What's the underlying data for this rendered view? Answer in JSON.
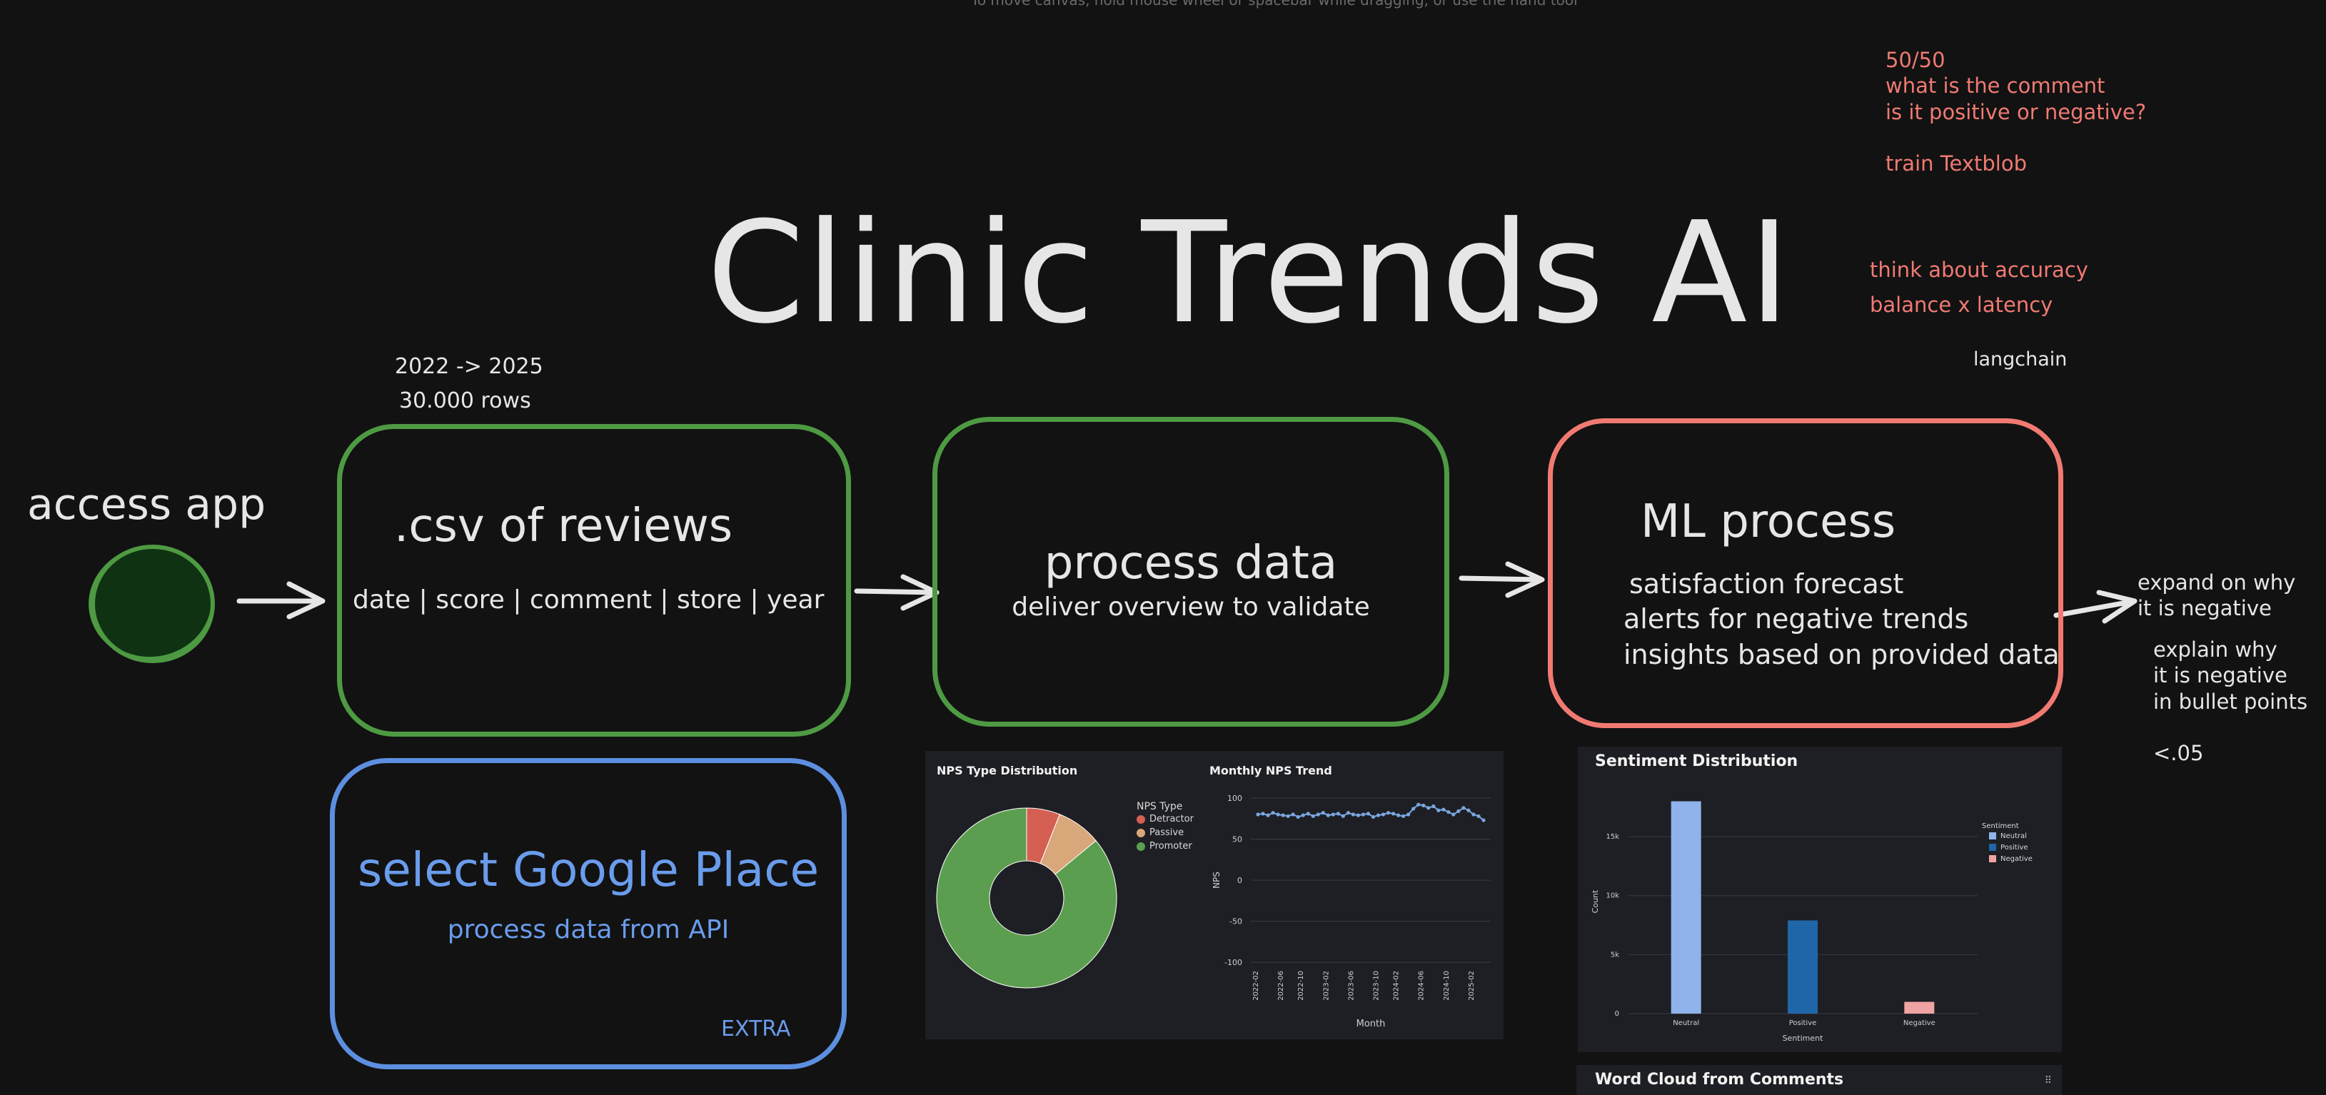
{
  "top_hint": "To move canvas, hold mouse wheel or spacebar while dragging, or use the hand tool",
  "title": "Clinic Trends AI",
  "notes": {
    "top_right": [
      "50/50",
      "what is the comment",
      "is it positive or negative?",
      "",
      "train Textblob"
    ],
    "accuracy": [
      "think about accuracy",
      "balance x latency"
    ],
    "langchain": "langchain",
    "data_range": [
      "2022 -> 2025",
      "30.000 rows"
    ],
    "access_app": "access app",
    "expand": [
      "expand on why",
      "it is negative"
    ],
    "explain": [
      "explain why",
      "it is negative",
      "in bullet points",
      "",
      "<.05"
    ]
  },
  "boxes": {
    "csv": {
      "title": ".csv of reviews",
      "subtitle": "date | score | comment | store | year"
    },
    "process": {
      "title": "process data",
      "subtitle": "deliver overview to validate"
    },
    "ml": {
      "title": "ML process",
      "lines": [
        "satisfaction forecast",
        "alerts for negative trends",
        "insights based on provided data"
      ]
    },
    "google": {
      "title": "select Google Place",
      "subtitle": "process data from API",
      "tag": "EXTRA"
    }
  },
  "colors": {
    "green": "#4e9a43",
    "red": "#f07a72",
    "blue": "#5d8fe0",
    "circle_fill": "#0f3312",
    "promoter": "#5c9e4f",
    "passive": "#d8a77a",
    "detractor": "#d45f52",
    "neutral_bar": "#8fb3ea",
    "positive_bar": "#1f66a8",
    "negative_bar": "#f0a3a3"
  },
  "charts_panel_1": {
    "pie_title": "NPS Type Distribution",
    "legend_title": "NPS Type",
    "legend": [
      "Detractor",
      "Passive",
      "Promoter"
    ],
    "trend_title": "Monthly NPS Trend",
    "ylabel": "NPS",
    "xlabel": "Month"
  },
  "charts_panel_2": {
    "title": "Sentiment Distribution",
    "legend_title": "Sentiment",
    "legend": [
      "Neutral",
      "Positive",
      "Negative"
    ],
    "xlabel": "Sentiment",
    "ylabel": "Count"
  },
  "word_cloud": {
    "title": "Word Cloud from Comments"
  },
  "chart_data": [
    {
      "type": "pie",
      "title": "NPS Type Distribution",
      "labels": [
        "Detractor",
        "Passive",
        "Promoter"
      ],
      "values": [
        6,
        8,
        86
      ],
      "legend_title": "NPS Type",
      "donut": true
    },
    {
      "type": "line",
      "title": "Monthly NPS Trend",
      "xlabel": "Month",
      "ylabel": "NPS",
      "ylim": [
        -100,
        100
      ],
      "yticks": [
        100,
        50,
        0,
        -50,
        -100
      ],
      "xticks": [
        "2022-02",
        "2022-06",
        "2022-10",
        "2023-02",
        "2023-06",
        "2023-10",
        "2024-02",
        "2024-06",
        "2024-10",
        "2025-02"
      ],
      "values": [
        80,
        81,
        79,
        82,
        80,
        79,
        78,
        80,
        77,
        79,
        81,
        78,
        80,
        82,
        79,
        80,
        81,
        78,
        82,
        80,
        79,
        80,
        81,
        77,
        79,
        80,
        82,
        81,
        79,
        78,
        80,
        87,
        92,
        91,
        88,
        90,
        85,
        86,
        83,
        80,
        84,
        88,
        85,
        80,
        78,
        73
      ]
    },
    {
      "type": "bar",
      "title": "Sentiment Distribution",
      "categories": [
        "Neutral",
        "Positive",
        "Negative"
      ],
      "values": [
        18000,
        7900,
        1000
      ],
      "xlabel": "Sentiment",
      "ylabel": "Count",
      "ylim": [
        0,
        19000
      ],
      "yticks": [
        0,
        5000,
        10000,
        15000
      ],
      "ytick_labels": [
        "0",
        "5k",
        "10k",
        "15k"
      ],
      "legend_title": "Sentiment"
    }
  ]
}
